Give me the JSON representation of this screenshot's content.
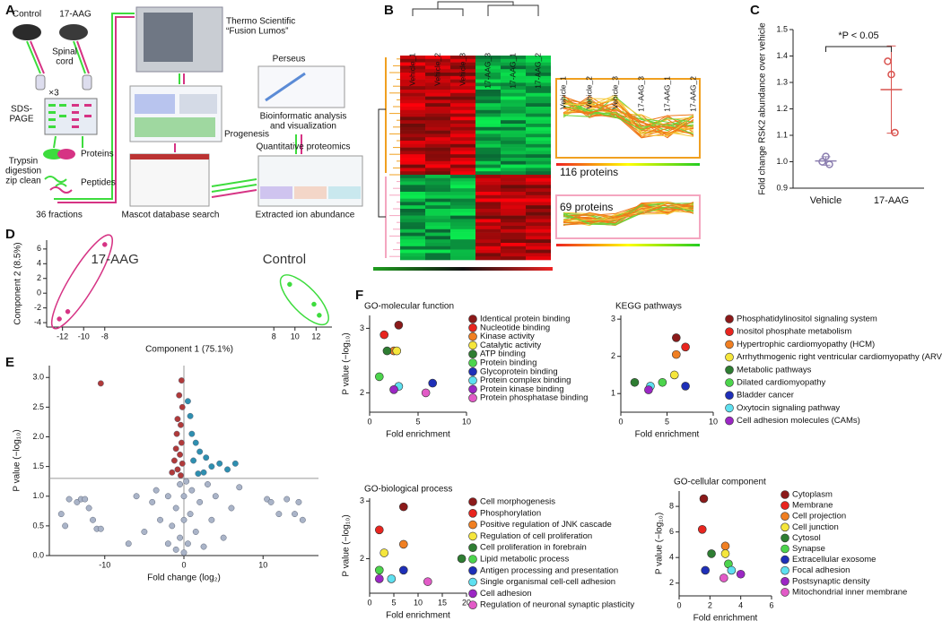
{
  "panel_labels": [
    "A",
    "B",
    "C",
    "D",
    "E",
    "F"
  ],
  "workflow": {
    "control": "Control",
    "treated": "17-AAG",
    "tissue": [
      "Spinal",
      "cord"
    ],
    "replicates": "×3",
    "gel": [
      "SDS-",
      "PAGE"
    ],
    "digestion": [
      "Trypsin",
      "digestion",
      "zip clean"
    ],
    "proteins": "Proteins",
    "peptides": "Peptides",
    "fractions": "36 fractions",
    "instrument": [
      "Thermo Scientific",
      "“Fusion Lumos”"
    ],
    "progenesis": "Progenesis",
    "mascot": "Mascot database search",
    "perseus": "Perseus",
    "bioinformatics": [
      "Bioinformatic analysis",
      "and visualization"
    ],
    "quant": "Quantitative proteomics",
    "extracted": "Extracted ion abundance"
  },
  "heatmap": {
    "columns": [
      "Vehicle_1",
      "Vehicle_2",
      "Vehicle_3",
      "17-AAG_3",
      "17-AAG_1",
      "17-AAG_2"
    ],
    "profile_columns": [
      "Vehicle_1",
      "Vehicle_2",
      "Vehicle_3",
      "17-AAG_3",
      "17-AAG_1",
      "17-AAG_2"
    ],
    "clusters": [
      "116 proteins",
      "69 proteins"
    ]
  },
  "chart_data": [
    {
      "type": "dot",
      "y_label": "Fold change RSK2 abundance over vehicle",
      "annotation": "*P < 0.05",
      "categories": [
        "Vehicle",
        "17-AAG"
      ],
      "colors": [
        "#8c7fb0",
        "#d9534f"
      ],
      "points": [
        [
          1.0,
          1.02,
          0.99
        ],
        [
          1.38,
          1.33,
          1.11
        ]
      ],
      "means": [
        1.003,
        1.273
      ],
      "errors": [
        0.016,
        0.165
      ],
      "ylim": [
        0.9,
        1.5
      ],
      "yticks": [
        0.9,
        {
          "value": 1,
          "label": "1.0"
        },
        1.1,
        1.2,
        1.3,
        1.4,
        1.5
      ]
    },
    {
      "type": "scatter",
      "x_label": "Component 1 (75.1%)",
      "y_label": "Component 2 (8.5%)",
      "xlim": [
        -13.5,
        13.5
      ],
      "xticks": [
        -12,
        -10,
        -8,
        8,
        10,
        12
      ],
      "ylim": [
        -4.6,
        7.2
      ],
      "yticks": [
        -4,
        -2,
        0,
        2,
        4,
        6
      ],
      "legend": "cluster",
      "ellipses": true,
      "series": [
        {
          "name": "17-AAG",
          "color": "#d63384",
          "x": [
            -8,
            -11.5,
            -12.3
          ],
          "values": [
            6.6,
            -2.5,
            -3.5
          ]
        },
        {
          "name": "Control",
          "color": "#3ddc3d",
          "x": [
            9.5,
            11.8,
            12.3
          ],
          "values": [
            1.2,
            -1.5,
            -3
          ]
        }
      ]
    },
    {
      "type": "scatter",
      "x_label": "Fold change (log₂)",
      "y_label": "P value (−log₁₀)",
      "xlim": [
        -17,
        17
      ],
      "xticks": [
        -10,
        0,
        10
      ],
      "ylim": [
        0,
        3.2
      ],
      "yticks": [
        {
          "value": 0,
          "label": "0.0"
        },
        0.5,
        {
          "value": 1,
          "label": "1.0"
        },
        1.5,
        {
          "value": 2,
          "label": "2.0"
        },
        2.5,
        {
          "value": 3,
          "label": "3.0"
        }
      ],
      "hline": 1.3,
      "vline": 0,
      "series": [
        {
          "color": "#aab4c8",
          "x": [
            -15.5,
            -14.5,
            -13.5,
            -13,
            -12.5,
            -12,
            -11.5,
            -11,
            -10.5,
            -15,
            10.5,
            11,
            12,
            13,
            14,
            15,
            14.5,
            -5,
            -4,
            -3,
            -3.5,
            -2,
            -2,
            -1.5,
            -1,
            -1,
            -0.5,
            -0.5,
            0,
            0,
            0,
            0.3,
            0.5,
            0.8,
            1,
            1.5,
            2,
            2.5,
            3,
            3.5,
            4,
            5,
            6,
            7,
            -6,
            -7
          ],
          "values": [
            0.7,
            0.95,
            0.9,
            0.95,
            0.95,
            0.8,
            0.6,
            0.45,
            0.45,
            0.5,
            0.95,
            0.9,
            0.7,
            0.95,
            0.7,
            0.6,
            0.9,
            0.4,
            0.9,
            0.6,
            1.1,
            0.2,
            1.0,
            0.5,
            0.1,
            0.8,
            1.2,
            0.3,
            0.05,
            0.6,
            1.0,
            1.25,
            0.2,
            0.7,
            1.1,
            0.4,
            0.9,
            0.15,
            1.2,
            0.6,
            1.0,
            0.3,
            0.8,
            1.15,
            1.0,
            0.2
          ]
        },
        {
          "color": "#b03a3a",
          "x": [
            -10.5,
            -0.3,
            -0.6,
            -0.2,
            -0.8,
            -0.4,
            -0.9,
            -0.3,
            -1,
            -0.5,
            -1.2,
            -0.2,
            -0.8,
            -1.5,
            -0.4
          ],
          "values": [
            2.9,
            2.95,
            2.7,
            2.5,
            2.3,
            2.2,
            2.05,
            1.9,
            1.8,
            1.7,
            1.6,
            1.55,
            1.45,
            1.4,
            1.35
          ]
        },
        {
          "color": "#2e8fb0",
          "x": [
            0.5,
            0.8,
            1,
            1.5,
            2,
            1.2,
            2.8,
            3.5,
            4.5,
            5.5,
            6.5,
            2.5,
            1.8
          ],
          "values": [
            2.6,
            2.35,
            2.05,
            1.9,
            1.75,
            1.6,
            1.65,
            1.5,
            1.55,
            1.45,
            1.55,
            1.4,
            1.38
          ]
        }
      ]
    },
    {
      "type": "scatter",
      "title": "GO-molecular function",
      "x_label": "Fold enrichment",
      "y_label": "P value (−log₁₀)",
      "xlim": [
        0,
        10
      ],
      "xticks": [
        0,
        5,
        10
      ],
      "ylim": [
        1.7,
        3.2
      ],
      "yticks": [
        2,
        3
      ],
      "legend": "right",
      "series": [
        {
          "name": "Identical protein binding",
          "color": "#8b1a1a",
          "x": [
            3
          ],
          "values": [
            3.05
          ]
        },
        {
          "name": "Nucleotide binding",
          "color": "#e8251f",
          "x": [
            1.5
          ],
          "values": [
            2.9
          ]
        },
        {
          "name": "Kinase activity",
          "color": "#f07f22",
          "x": [
            2.5
          ],
          "values": [
            2.65
          ]
        },
        {
          "name": "Catalytic activity",
          "color": "#f5e63c",
          "x": [
            2.8
          ],
          "values": [
            2.65
          ]
        },
        {
          "name": "ATP binding",
          "color": "#2e7d32",
          "x": [
            1.8
          ],
          "values": [
            2.65
          ]
        },
        {
          "name": "Protein binding",
          "color": "#4cd44c",
          "x": [
            1
          ],
          "values": [
            2.25
          ]
        },
        {
          "name": "Glycoprotein binding",
          "color": "#1e2fb8",
          "x": [
            6.5
          ],
          "values": [
            2.15
          ]
        },
        {
          "name": "Protein complex binding",
          "color": "#5ee0f0",
          "x": [
            3
          ],
          "values": [
            2.1
          ]
        },
        {
          "name": "Protein kinase binding",
          "color": "#9b27c4",
          "x": [
            2.5
          ],
          "values": [
            2.05
          ]
        },
        {
          "name": "Protein phosphatase binding",
          "color": "#e25bc7",
          "x": [
            5.8
          ],
          "values": [
            2.0
          ]
        }
      ]
    },
    {
      "type": "scatter",
      "title": "KEGG pathways",
      "x_label": "Fold enrichment",
      "xlim": [
        0,
        10
      ],
      "xticks": [
        0,
        5,
        10
      ],
      "ylim": [
        0.5,
        3.1
      ],
      "yticks": [
        1,
        2,
        3
      ],
      "legend": "right",
      "series": [
        {
          "name": "Phosphatidylinositol signaling system",
          "color": "#8b1a1a",
          "x": [
            6
          ],
          "values": [
            2.5
          ]
        },
        {
          "name": "Inositol phosphate metabolism",
          "color": "#e8251f",
          "x": [
            7
          ],
          "values": [
            2.25
          ]
        },
        {
          "name": "Hypertrophic cardiomyopathy (HCM)",
          "color": "#f07f22",
          "x": [
            6
          ],
          "values": [
            2.05
          ]
        },
        {
          "name": "Arrhythmogenic right ventricular cardiomyopathy (ARVC)",
          "color": "#f5e63c",
          "x": [
            5.8
          ],
          "values": [
            1.5
          ]
        },
        {
          "name": "Metabolic pathways",
          "color": "#2e7d32",
          "x": [
            1.5
          ],
          "values": [
            1.3
          ]
        },
        {
          "name": "Dilated cardiomyopathy",
          "color": "#4cd44c",
          "x": [
            4.5
          ],
          "values": [
            1.3
          ]
        },
        {
          "name": "Bladder cancer",
          "color": "#1e2fb8",
          "x": [
            7
          ],
          "values": [
            1.2
          ]
        },
        {
          "name": "Oxytocin signaling pathway",
          "color": "#5ee0f0",
          "x": [
            3.2
          ],
          "values": [
            1.2
          ]
        },
        {
          "name": "Cell adhesion molecules (CAMs)",
          "color": "#9b27c4",
          "x": [
            3
          ],
          "values": [
            1.1
          ]
        }
      ]
    },
    {
      "type": "scatter",
      "title": "GO-biological process",
      "x_label": "Fold enrichment",
      "y_label": "P value (−log₁₀)",
      "xlim": [
        0,
        20
      ],
      "xticks": [
        0,
        5,
        10,
        15,
        20
      ],
      "ylim": [
        1.4,
        3.05
      ],
      "yticks": [
        2,
        3
      ],
      "legend": "right",
      "series": [
        {
          "name": "Cell morphogenesis",
          "color": "#8b1a1a",
          "x": [
            7
          ],
          "values": [
            2.9
          ]
        },
        {
          "name": "Phosphorylation",
          "color": "#e8251f",
          "x": [
            2
          ],
          "values": [
            2.5
          ]
        },
        {
          "name": "Positive regulation of JNK cascade",
          "color": "#f07f22",
          "x": [
            7
          ],
          "values": [
            2.25
          ]
        },
        {
          "name": "Regulation of cell proliferation",
          "color": "#f5e63c",
          "x": [
            3
          ],
          "values": [
            2.1
          ]
        },
        {
          "name": "Cell proliferation in forebrain",
          "color": "#2e7d32",
          "x": [
            19
          ],
          "values": [
            2.0
          ]
        },
        {
          "name": "Lipid metabolic process",
          "color": "#4cd44c",
          "x": [
            2
          ],
          "values": [
            1.8
          ]
        },
        {
          "name": "Antigen processing and presentation",
          "color": "#1e2fb8",
          "x": [
            7
          ],
          "values": [
            1.8
          ]
        },
        {
          "name": "Single organismal cell-cell adhesion",
          "color": "#5ee0f0",
          "x": [
            4.5
          ],
          "values": [
            1.65
          ]
        },
        {
          "name": "Cell adhesion",
          "color": "#9b27c4",
          "x": [
            2
          ],
          "values": [
            1.65
          ]
        },
        {
          "name": "Regulation of neuronal synaptic plasticity",
          "color": "#e25bc7",
          "x": [
            12
          ],
          "values": [
            1.6
          ]
        }
      ]
    },
    {
      "type": "scatter",
      "title": "GO-cellular component",
      "x_label": "Fold enrichment",
      "y_label": "P value (−log₁₀)",
      "xlim": [
        0,
        6
      ],
      "xticks": [
        0,
        2,
        4,
        6
      ],
      "ylim": [
        1,
        9.2
      ],
      "yticks": [
        2,
        4,
        6,
        8
      ],
      "legend": "right",
      "series": [
        {
          "name": "Cytoplasm",
          "color": "#8b1a1a",
          "x": [
            1.6
          ],
          "values": [
            8.6
          ]
        },
        {
          "name": "Membrane",
          "color": "#e8251f",
          "x": [
            1.5
          ],
          "values": [
            6.2
          ]
        },
        {
          "name": "Cell projection",
          "color": "#f07f22",
          "x": [
            3
          ],
          "values": [
            4.9
          ]
        },
        {
          "name": "Cell junction",
          "color": "#f5e63c",
          "x": [
            3
          ],
          "values": [
            4.3
          ]
        },
        {
          "name": "Cytosol",
          "color": "#2e7d32",
          "x": [
            2.1
          ],
          "values": [
            4.3
          ]
        },
        {
          "name": "Synapse",
          "color": "#4cd44c",
          "x": [
            3.2
          ],
          "values": [
            3.5
          ]
        },
        {
          "name": "Extracellular exosome",
          "color": "#1e2fb8",
          "x": [
            1.7
          ],
          "values": [
            3.0
          ]
        },
        {
          "name": "Focal adhesion",
          "color": "#5ee0f0",
          "x": [
            3.4
          ],
          "values": [
            3.0
          ]
        },
        {
          "name": "Postsynaptic density",
          "color": "#9b27c4",
          "x": [
            4
          ],
          "values": [
            2.7
          ]
        },
        {
          "name": "Mitochondrial inner membrane",
          "color": "#e25bc7",
          "x": [
            2.9
          ],
          "values": [
            2.4
          ]
        }
      ]
    }
  ]
}
